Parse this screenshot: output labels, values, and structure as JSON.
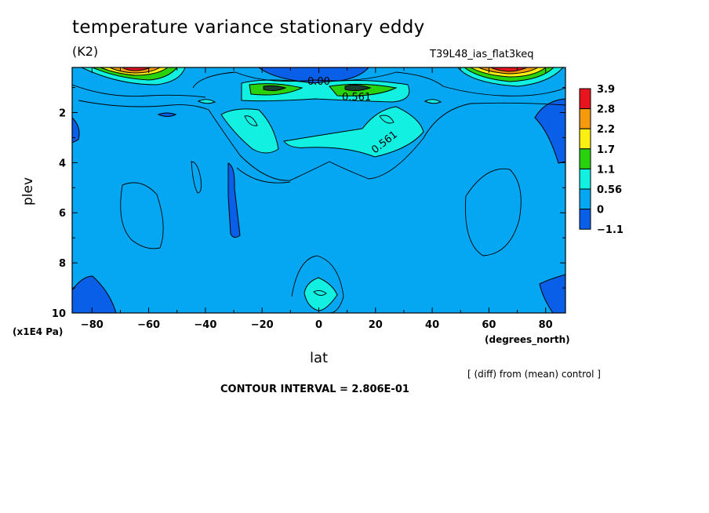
{
  "title": "temperature variance stationary eddy",
  "units": "(K2)",
  "run_name": "T39L48_ias_flat3keq",
  "y_axis_units": "(x1E4 Pa)",
  "x_axis_units": "(degrees_north)",
  "diff_note": "[ (diff) from (mean) control ]",
  "contour_interval": "CONTOUR INTERVAL = 2.806E-01",
  "chart_data": {
    "type": "heatmap",
    "xlabel": "lat",
    "ylabel": "plev",
    "xlim": [
      -87,
      87
    ],
    "ylim": [
      10,
      0.2
    ],
    "x_ticks": [
      -80,
      -60,
      -40,
      -20,
      0,
      20,
      40,
      60,
      80
    ],
    "y_ticks": [
      2,
      4,
      6,
      8,
      10
    ],
    "colorbar": {
      "labels": [
        "3.9",
        "2.8",
        "2.2",
        "1.7",
        "1.1",
        "0.56",
        "0",
        "-1.1"
      ],
      "colors": [
        "#e8141e",
        "#f49a0c",
        "#fcf013",
        "#28d20c",
        "#12f0e2",
        "#05a7f2",
        "#0a5fe8"
      ]
    },
    "contour_labels": [
      "0.00",
      "0.561",
      "0.561"
    ]
  }
}
